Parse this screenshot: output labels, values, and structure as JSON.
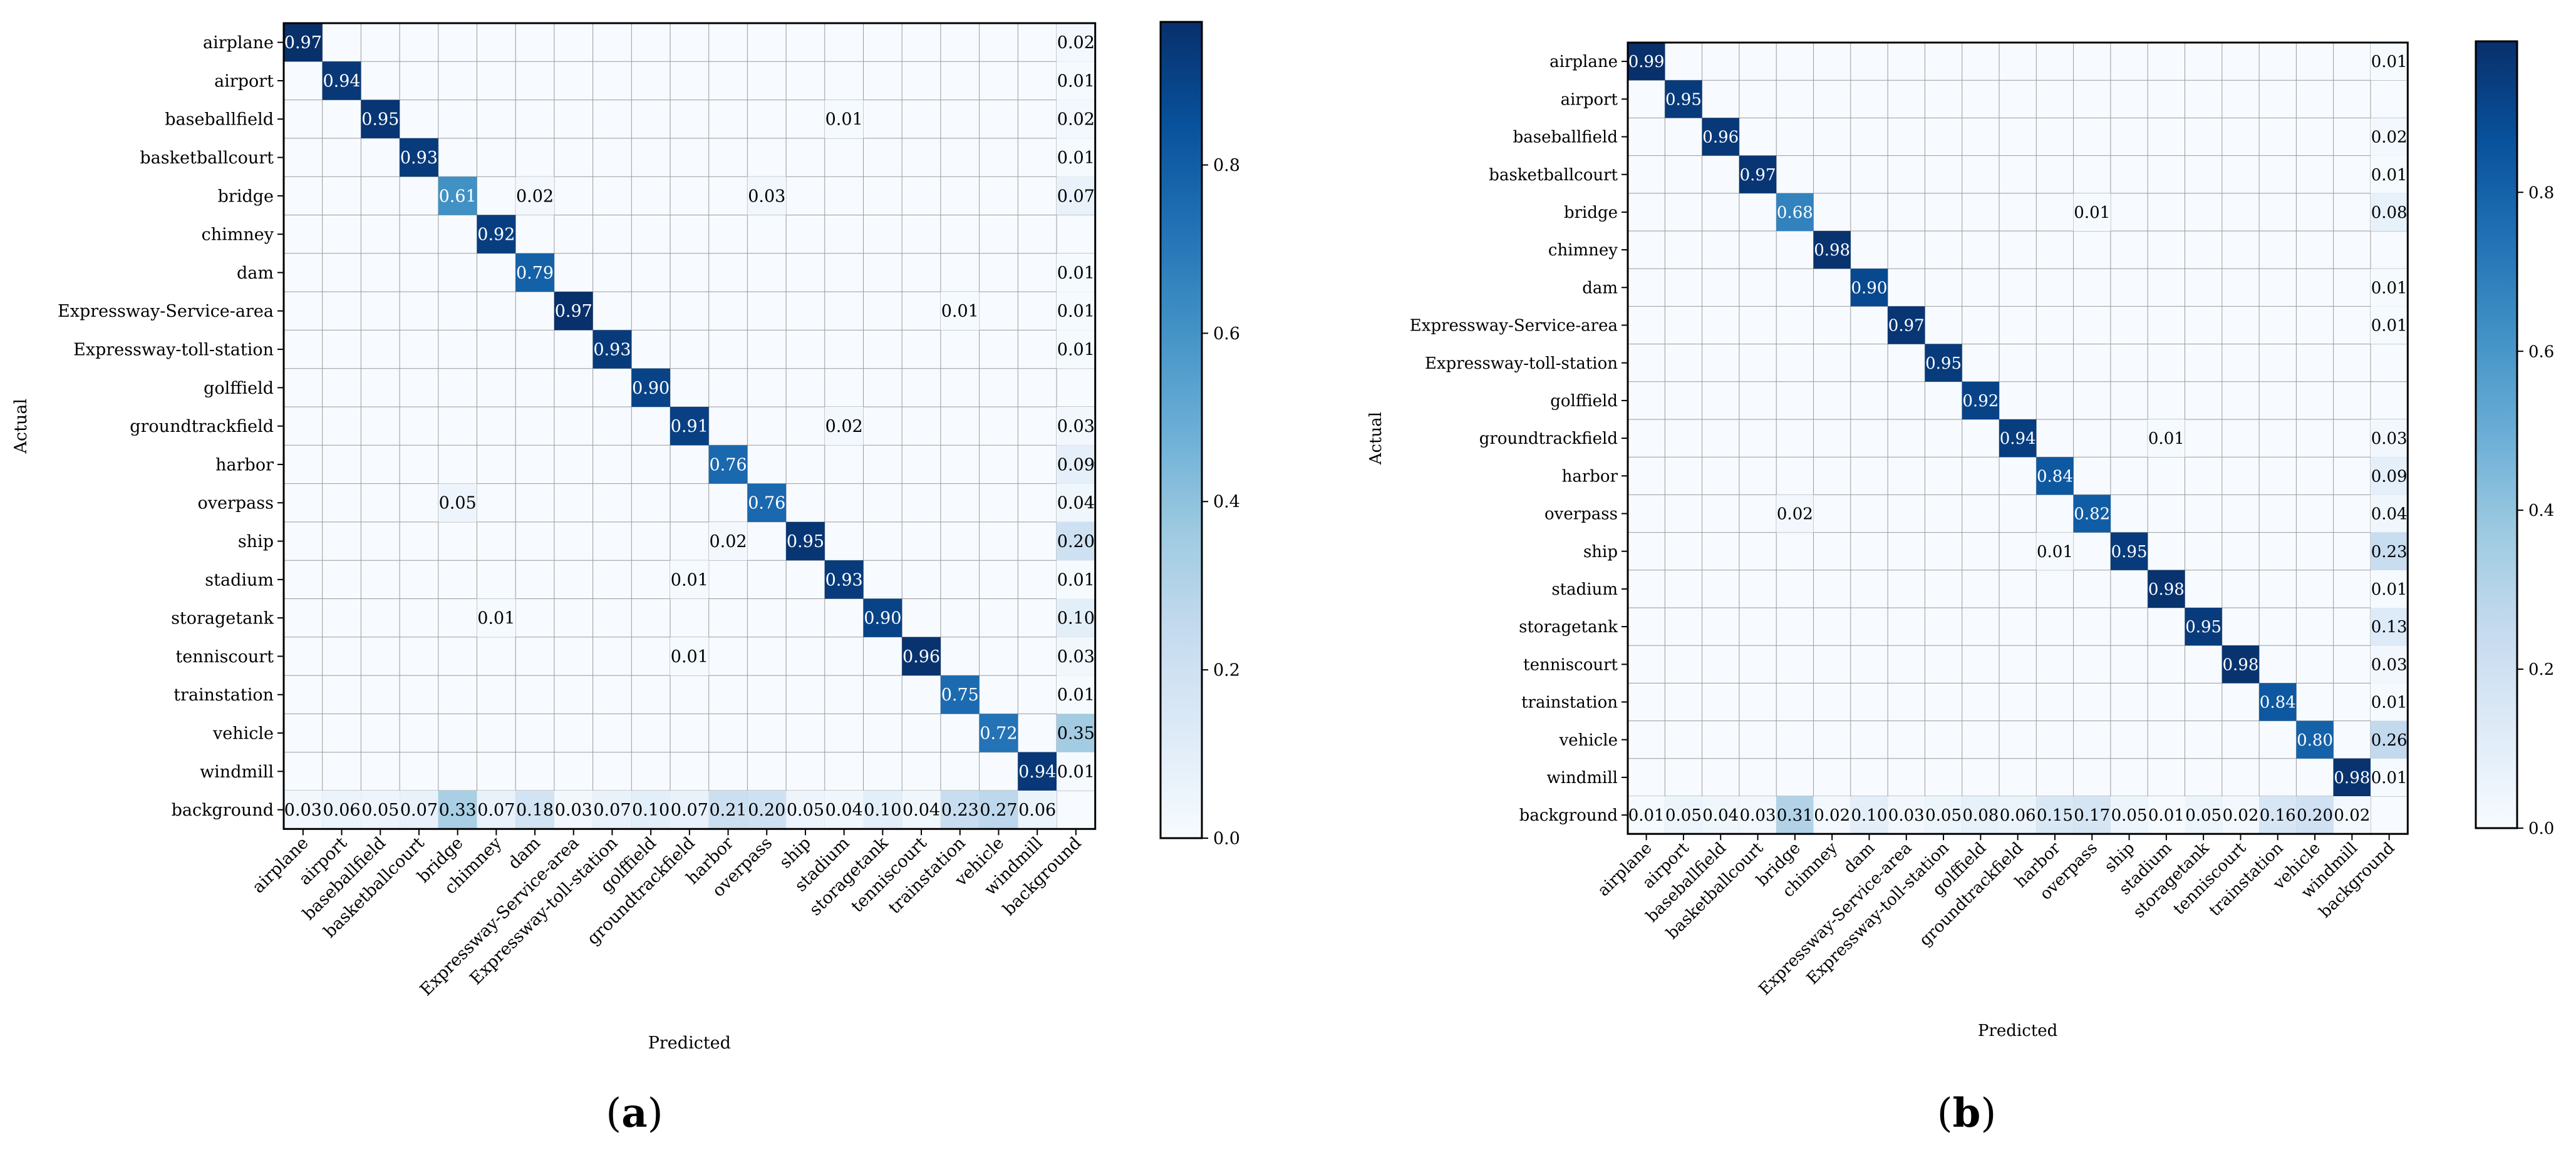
{
  "colormap": {
    "stops": [
      "#f7fbff",
      "#deebf7",
      "#c6dbef",
      "#9ecae1",
      "#6baed6",
      "#4292c6",
      "#2171b5",
      "#08519c",
      "#08306b"
    ],
    "grid_color": "#9a9a9a",
    "light_text_color": "#ffffff",
    "dark_text_color": "#000000"
  },
  "chart_data": [
    {
      "type": "heatmap",
      "subplot_label": "(a)",
      "title": "",
      "xlabel": "Predicted",
      "ylabel": "Actual",
      "rows": [
        "airplane",
        "airport",
        "baseballfield",
        "basketballcourt",
        "bridge",
        "chimney",
        "dam",
        "Expressway-Service-area",
        "Expressway-toll-station",
        "golffield",
        "groundtrackfield",
        "harbor",
        "overpass",
        "ship",
        "stadium",
        "storagetank",
        "tenniscourt",
        "trainstation",
        "vehicle",
        "windmill",
        "background"
      ],
      "columns": [
        "airplane",
        "airport",
        "baseballfield",
        "basketballcourt",
        "bridge",
        "chimney",
        "dam",
        "Expressway-Service-area",
        "Expressway-toll-station",
        "golffield",
        "groundtrackfield",
        "harbor",
        "overpass",
        "ship",
        "stadium",
        "storagetank",
        "tenniscourt",
        "trainstation",
        "vehicle",
        "windmill",
        "background"
      ],
      "cells": [
        {
          "row": 0,
          "col": 0,
          "value": 0.97,
          "label": "0.97"
        },
        {
          "row": 0,
          "col": 20,
          "value": 0.02,
          "label": "0.02"
        },
        {
          "row": 1,
          "col": 1,
          "value": 0.94,
          "label": "0.94"
        },
        {
          "row": 1,
          "col": 20,
          "value": 0.01,
          "label": "0.01"
        },
        {
          "row": 2,
          "col": 2,
          "value": 0.95,
          "label": "0.95"
        },
        {
          "row": 2,
          "col": 14,
          "value": 0.01,
          "label": "0.01"
        },
        {
          "row": 2,
          "col": 20,
          "value": 0.02,
          "label": "0.02"
        },
        {
          "row": 3,
          "col": 3,
          "value": 0.93,
          "label": "0.93"
        },
        {
          "row": 3,
          "col": 20,
          "value": 0.01,
          "label": "0.01"
        },
        {
          "row": 4,
          "col": 4,
          "value": 0.61,
          "label": "0.61"
        },
        {
          "row": 4,
          "col": 6,
          "value": 0.02,
          "label": "0.02"
        },
        {
          "row": 4,
          "col": 12,
          "value": 0.03,
          "label": "0.03"
        },
        {
          "row": 4,
          "col": 20,
          "value": 0.07,
          "label": "0.07"
        },
        {
          "row": 5,
          "col": 5,
          "value": 0.92,
          "label": "0.92"
        },
        {
          "row": 6,
          "col": 6,
          "value": 0.79,
          "label": "0.79"
        },
        {
          "row": 6,
          "col": 20,
          "value": 0.01,
          "label": "0.01"
        },
        {
          "row": 7,
          "col": 7,
          "value": 0.97,
          "label": "0.97"
        },
        {
          "row": 7,
          "col": 17,
          "value": 0.01,
          "label": "0.01"
        },
        {
          "row": 7,
          "col": 20,
          "value": 0.01,
          "label": "0.01"
        },
        {
          "row": 8,
          "col": 8,
          "value": 0.93,
          "label": "0.93"
        },
        {
          "row": 8,
          "col": 20,
          "value": 0.01,
          "label": "0.01"
        },
        {
          "row": 9,
          "col": 9,
          "value": 0.9,
          "label": "0.90"
        },
        {
          "row": 10,
          "col": 10,
          "value": 0.91,
          "label": "0.91"
        },
        {
          "row": 10,
          "col": 14,
          "value": 0.02,
          "label": "0.02"
        },
        {
          "row": 10,
          "col": 20,
          "value": 0.03,
          "label": "0.03"
        },
        {
          "row": 11,
          "col": 11,
          "value": 0.76,
          "label": "0.76"
        },
        {
          "row": 11,
          "col": 20,
          "value": 0.09,
          "label": "0.09"
        },
        {
          "row": 12,
          "col": 4,
          "value": 0.05,
          "label": "0.05"
        },
        {
          "row": 12,
          "col": 12,
          "value": 0.76,
          "label": "0.76"
        },
        {
          "row": 12,
          "col": 20,
          "value": 0.04,
          "label": "0.04"
        },
        {
          "row": 13,
          "col": 11,
          "value": 0.02,
          "label": "0.02"
        },
        {
          "row": 13,
          "col": 13,
          "value": 0.95,
          "label": "0.95"
        },
        {
          "row": 13,
          "col": 20,
          "value": 0.2,
          "label": "0.20"
        },
        {
          "row": 14,
          "col": 10,
          "value": 0.01,
          "label": "0.01"
        },
        {
          "row": 14,
          "col": 14,
          "value": 0.93,
          "label": "0.93"
        },
        {
          "row": 14,
          "col": 20,
          "value": 0.01,
          "label": "0.01"
        },
        {
          "row": 15,
          "col": 5,
          "value": 0.01,
          "label": "0.01"
        },
        {
          "row": 15,
          "col": 15,
          "value": 0.9,
          "label": "0.90"
        },
        {
          "row": 15,
          "col": 20,
          "value": 0.1,
          "label": "0.10"
        },
        {
          "row": 16,
          "col": 10,
          "value": 0.01,
          "label": "0.01"
        },
        {
          "row": 16,
          "col": 16,
          "value": 0.96,
          "label": "0.96"
        },
        {
          "row": 16,
          "col": 20,
          "value": 0.03,
          "label": "0.03"
        },
        {
          "row": 17,
          "col": 17,
          "value": 0.75,
          "label": "0.75"
        },
        {
          "row": 17,
          "col": 20,
          "value": 0.01,
          "label": "0.01"
        },
        {
          "row": 18,
          "col": 18,
          "value": 0.72,
          "label": "0.72"
        },
        {
          "row": 18,
          "col": 20,
          "value": 0.35,
          "label": "0.35"
        },
        {
          "row": 19,
          "col": 19,
          "value": 0.94,
          "label": "0.94"
        },
        {
          "row": 19,
          "col": 20,
          "value": 0.01,
          "label": "0.01"
        },
        {
          "row": 20,
          "col": 0,
          "value": 0.03,
          "label": "0.03"
        },
        {
          "row": 20,
          "col": 1,
          "value": 0.06,
          "label": "0.06"
        },
        {
          "row": 20,
          "col": 2,
          "value": 0.05,
          "label": "0.05"
        },
        {
          "row": 20,
          "col": 3,
          "value": 0.07,
          "label": "0.07"
        },
        {
          "row": 20,
          "col": 4,
          "value": 0.33,
          "label": "0.33"
        },
        {
          "row": 20,
          "col": 5,
          "value": 0.07,
          "label": "0.07"
        },
        {
          "row": 20,
          "col": 6,
          "value": 0.18,
          "label": "0.18"
        },
        {
          "row": 20,
          "col": 7,
          "value": 0.03,
          "label": "0.03"
        },
        {
          "row": 20,
          "col": 8,
          "value": 0.07,
          "label": "0.07"
        },
        {
          "row": 20,
          "col": 9,
          "value": 0.1,
          "label": "0.10"
        },
        {
          "row": 20,
          "col": 10,
          "value": 0.07,
          "label": "0.07"
        },
        {
          "row": 20,
          "col": 11,
          "value": 0.21,
          "label": "0.21"
        },
        {
          "row": 20,
          "col": 12,
          "value": 0.2,
          "label": "0.20"
        },
        {
          "row": 20,
          "col": 13,
          "value": 0.05,
          "label": "0.05"
        },
        {
          "row": 20,
          "col": 14,
          "value": 0.04,
          "label": "0.04"
        },
        {
          "row": 20,
          "col": 15,
          "value": 0.1,
          "label": "0.10"
        },
        {
          "row": 20,
          "col": 16,
          "value": 0.04,
          "label": "0.04"
        },
        {
          "row": 20,
          "col": 17,
          "value": 0.23,
          "label": "0.23"
        },
        {
          "row": 20,
          "col": 18,
          "value": 0.27,
          "label": "0.27"
        },
        {
          "row": 20,
          "col": 19,
          "value": 0.06,
          "label": "0.06"
        }
      ],
      "colorbar": {
        "range": [
          0,
          0.97
        ],
        "ticks": [
          0.0,
          0.2,
          0.4,
          0.6,
          0.8
        ],
        "tick_labels": [
          "0.0",
          "0.2",
          "0.4",
          "0.6",
          "0.8"
        ]
      }
    },
    {
      "type": "heatmap",
      "subplot_label": "(b)",
      "title": "",
      "xlabel": "Predicted",
      "ylabel": "Actual",
      "rows": [
        "airplane",
        "airport",
        "baseballfield",
        "basketballcourt",
        "bridge",
        "chimney",
        "dam",
        "Expressway-Service-area",
        "Expressway-toll-station",
        "golffield",
        "groundtrackfield",
        "harbor",
        "overpass",
        "ship",
        "stadium",
        "storagetank",
        "tenniscourt",
        "trainstation",
        "vehicle",
        "windmill",
        "background"
      ],
      "columns": [
        "airplane",
        "airport",
        "baseballfield",
        "basketballcourt",
        "bridge",
        "chimney",
        "dam",
        "Expressway-Service-area",
        "Expressway-toll-station",
        "golffield",
        "groundtrackfield",
        "harbor",
        "overpass",
        "ship",
        "stadium",
        "storagetank",
        "tenniscourt",
        "trainstation",
        "vehicle",
        "windmill",
        "background"
      ],
      "cells": [
        {
          "row": 0,
          "col": 0,
          "value": 0.99,
          "label": "0.99"
        },
        {
          "row": 0,
          "col": 20,
          "value": 0.01,
          "label": "0.01"
        },
        {
          "row": 1,
          "col": 1,
          "value": 0.95,
          "label": "0.95"
        },
        {
          "row": 2,
          "col": 2,
          "value": 0.96,
          "label": "0.96"
        },
        {
          "row": 2,
          "col": 20,
          "value": 0.02,
          "label": "0.02"
        },
        {
          "row": 3,
          "col": 3,
          "value": 0.97,
          "label": "0.97"
        },
        {
          "row": 3,
          "col": 20,
          "value": 0.01,
          "label": "0.01"
        },
        {
          "row": 4,
          "col": 4,
          "value": 0.68,
          "label": "0.68"
        },
        {
          "row": 4,
          "col": 12,
          "value": 0.01,
          "label": "0.01"
        },
        {
          "row": 4,
          "col": 20,
          "value": 0.08,
          "label": "0.08"
        },
        {
          "row": 5,
          "col": 5,
          "value": 0.98,
          "label": "0.98"
        },
        {
          "row": 6,
          "col": 6,
          "value": 0.9,
          "label": "0.90"
        },
        {
          "row": 6,
          "col": 20,
          "value": 0.01,
          "label": "0.01"
        },
        {
          "row": 7,
          "col": 7,
          "value": 0.97,
          "label": "0.97"
        },
        {
          "row": 7,
          "col": 20,
          "value": 0.01,
          "label": "0.01"
        },
        {
          "row": 8,
          "col": 8,
          "value": 0.95,
          "label": "0.95"
        },
        {
          "row": 9,
          "col": 9,
          "value": 0.92,
          "label": "0.92"
        },
        {
          "row": 10,
          "col": 10,
          "value": 0.94,
          "label": "0.94"
        },
        {
          "row": 10,
          "col": 14,
          "value": 0.01,
          "label": "0.01"
        },
        {
          "row": 10,
          "col": 20,
          "value": 0.03,
          "label": "0.03"
        },
        {
          "row": 11,
          "col": 11,
          "value": 0.84,
          "label": "0.84"
        },
        {
          "row": 11,
          "col": 20,
          "value": 0.09,
          "label": "0.09"
        },
        {
          "row": 12,
          "col": 4,
          "value": 0.02,
          "label": "0.02"
        },
        {
          "row": 12,
          "col": 12,
          "value": 0.82,
          "label": "0.82"
        },
        {
          "row": 12,
          "col": 20,
          "value": 0.04,
          "label": "0.04"
        },
        {
          "row": 13,
          "col": 11,
          "value": 0.01,
          "label": "0.01"
        },
        {
          "row": 13,
          "col": 13,
          "value": 0.95,
          "label": "0.95"
        },
        {
          "row": 13,
          "col": 20,
          "value": 0.23,
          "label": "0.23"
        },
        {
          "row": 14,
          "col": 14,
          "value": 0.98,
          "label": "0.98"
        },
        {
          "row": 14,
          "col": 20,
          "value": 0.01,
          "label": "0.01"
        },
        {
          "row": 15,
          "col": 15,
          "value": 0.95,
          "label": "0.95"
        },
        {
          "row": 15,
          "col": 20,
          "value": 0.13,
          "label": "0.13"
        },
        {
          "row": 16,
          "col": 16,
          "value": 0.98,
          "label": "0.98"
        },
        {
          "row": 16,
          "col": 20,
          "value": 0.03,
          "label": "0.03"
        },
        {
          "row": 17,
          "col": 17,
          "value": 0.84,
          "label": "0.84"
        },
        {
          "row": 17,
          "col": 20,
          "value": 0.01,
          "label": "0.01"
        },
        {
          "row": 18,
          "col": 18,
          "value": 0.8,
          "label": "0.80"
        },
        {
          "row": 18,
          "col": 20,
          "value": 0.26,
          "label": "0.26"
        },
        {
          "row": 19,
          "col": 19,
          "value": 0.98,
          "label": "0.98"
        },
        {
          "row": 19,
          "col": 20,
          "value": 0.01,
          "label": "0.01"
        },
        {
          "row": 20,
          "col": 0,
          "value": 0.01,
          "label": "0.01"
        },
        {
          "row": 20,
          "col": 1,
          "value": 0.05,
          "label": "0.05"
        },
        {
          "row": 20,
          "col": 2,
          "value": 0.04,
          "label": "0.04"
        },
        {
          "row": 20,
          "col": 3,
          "value": 0.03,
          "label": "0.03"
        },
        {
          "row": 20,
          "col": 4,
          "value": 0.31,
          "label": "0.31"
        },
        {
          "row": 20,
          "col": 5,
          "value": 0.02,
          "label": "0.02"
        },
        {
          "row": 20,
          "col": 6,
          "value": 0.1,
          "label": "0.10"
        },
        {
          "row": 20,
          "col": 7,
          "value": 0.03,
          "label": "0.03"
        },
        {
          "row": 20,
          "col": 8,
          "value": 0.05,
          "label": "0.05"
        },
        {
          "row": 20,
          "col": 9,
          "value": 0.08,
          "label": "0.08"
        },
        {
          "row": 20,
          "col": 10,
          "value": 0.06,
          "label": "0.06"
        },
        {
          "row": 20,
          "col": 11,
          "value": 0.15,
          "label": "0.15"
        },
        {
          "row": 20,
          "col": 12,
          "value": 0.17,
          "label": "0.17"
        },
        {
          "row": 20,
          "col": 13,
          "value": 0.05,
          "label": "0.05"
        },
        {
          "row": 20,
          "col": 14,
          "value": 0.01,
          "label": "0.01"
        },
        {
          "row": 20,
          "col": 15,
          "value": 0.05,
          "label": "0.05"
        },
        {
          "row": 20,
          "col": 16,
          "value": 0.02,
          "label": "0.02"
        },
        {
          "row": 20,
          "col": 17,
          "value": 0.16,
          "label": "0.16"
        },
        {
          "row": 20,
          "col": 18,
          "value": 0.2,
          "label": "0.20"
        },
        {
          "row": 20,
          "col": 19,
          "value": 0.02,
          "label": "0.02"
        }
      ],
      "colorbar": {
        "range": [
          0,
          0.99
        ],
        "ticks": [
          0.0,
          0.2,
          0.4,
          0.6,
          0.8
        ],
        "tick_labels": [
          "0.0",
          "0.2",
          "0.4",
          "0.6",
          "0.8"
        ]
      }
    }
  ]
}
